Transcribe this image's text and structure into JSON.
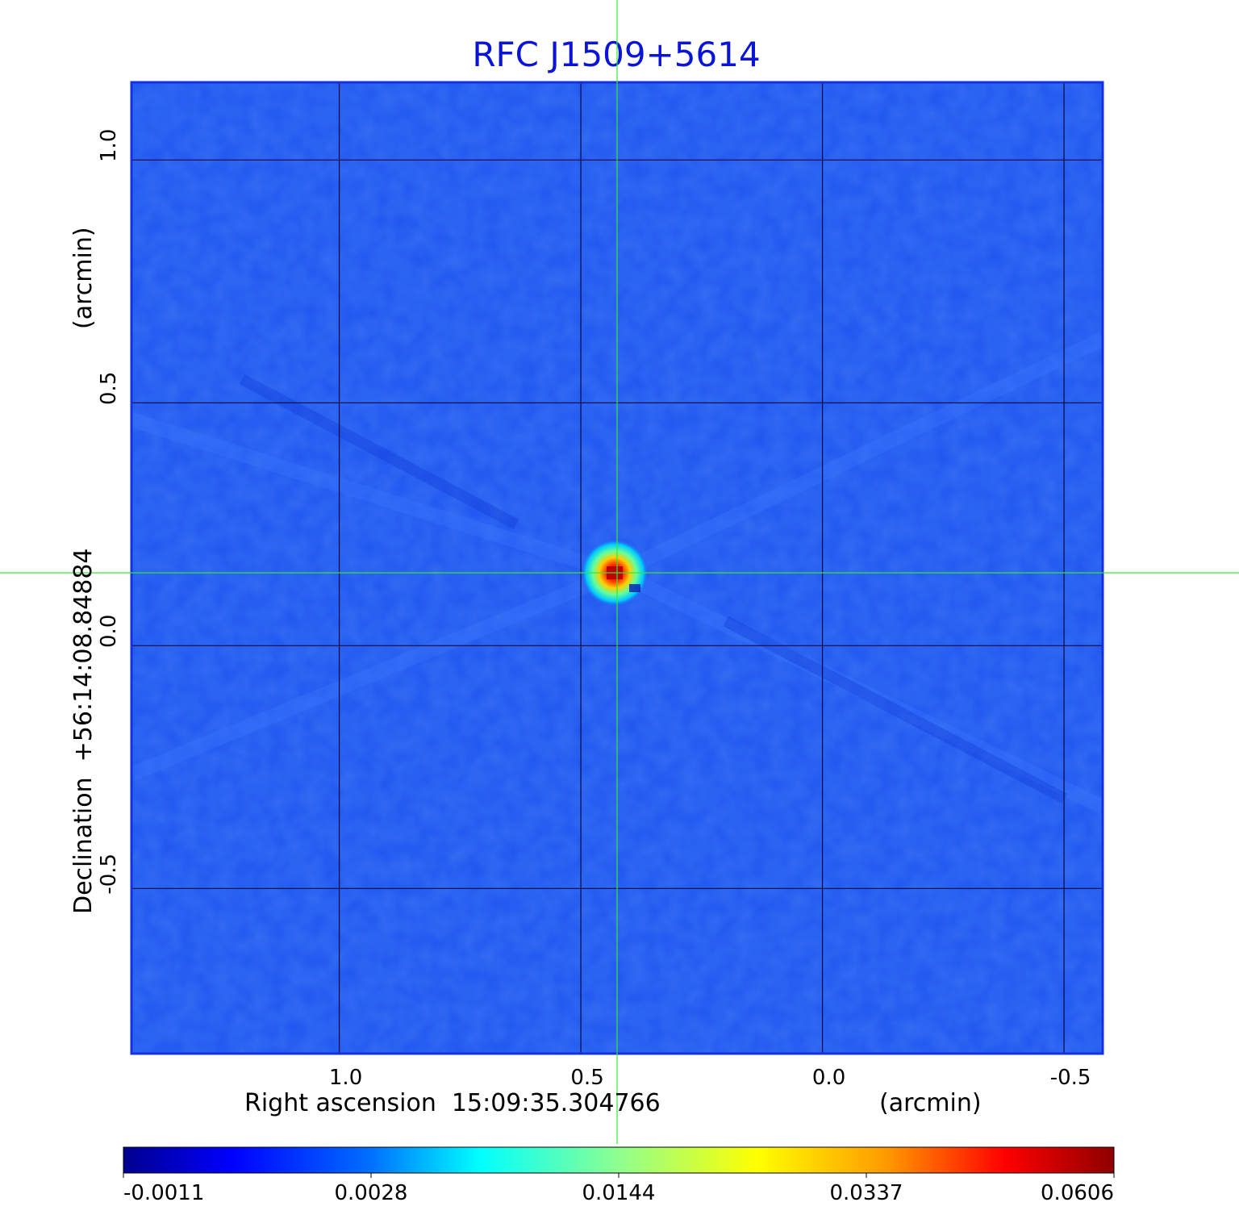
{
  "chart_data": {
    "type": "heatmap",
    "title": "RFC J1509+5614",
    "xlabel": "Right ascension  15:09:35.304766",
    "xunit": "(arcmin)",
    "ylabel": "Declination  +56:14:08.84884",
    "yunit": "(arcmin)",
    "xlim": [
      1.43,
      -0.58
    ],
    "ylim": [
      -0.84,
      1.16
    ],
    "x_ticks": [
      1.0,
      0.5,
      0.0,
      -0.5
    ],
    "x_tick_labels": [
      "1.0",
      "0.5",
      "0.0",
      "-0.5"
    ],
    "y_ticks": [
      1.0,
      0.5,
      0.0,
      -0.5
    ],
    "y_tick_labels": [
      "1.0",
      "0.5",
      "0.0",
      "-0.5"
    ],
    "grid": true,
    "peak": {
      "x": 0.43,
      "y": 0.15,
      "value": 0.0606
    },
    "crosshair": {
      "x": 0.425,
      "y": 0.15
    },
    "colorbar": {
      "ticks": [
        -0.0011,
        0.0028,
        0.0144,
        0.0337,
        0.0606
      ],
      "tick_labels": [
        "-0.0011",
        "0.0028",
        "0.0144",
        "0.0337",
        "0.0606"
      ],
      "colormap": "jet"
    },
    "colors": {
      "title": "#0a14d8",
      "background_map": "#1f55f0",
      "grid": "#0b0b40",
      "crosshair": "#33e833",
      "frame": "#1530e0"
    }
  }
}
